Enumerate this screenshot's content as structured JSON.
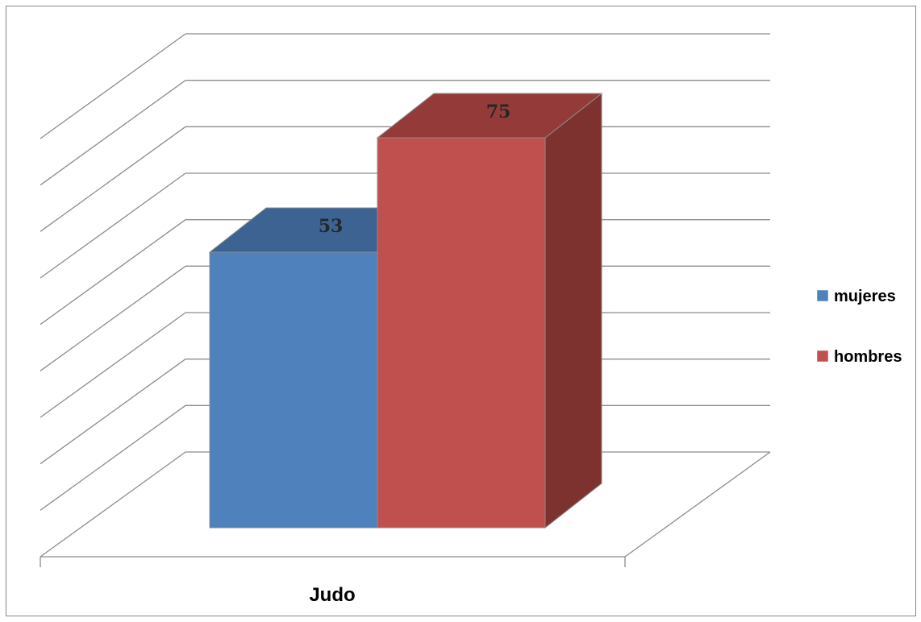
{
  "chart_data": {
    "type": "bar",
    "categories": [
      "Judo"
    ],
    "series": [
      {
        "name": "mujeres",
        "values": [
          53
        ],
        "color": "#4F81BD",
        "top_color": "#3D6393",
        "side_color": "#3A5F8E"
      },
      {
        "name": "hombres",
        "values": [
          75
        ],
        "color": "#C0504D",
        "top_color": "#943B39",
        "side_color": "#7E322F"
      }
    ],
    "ylim": [
      0,
      90
    ],
    "gridlines": true,
    "legend_position": "right",
    "title": "",
    "xlabel": "",
    "ylabel": ""
  }
}
